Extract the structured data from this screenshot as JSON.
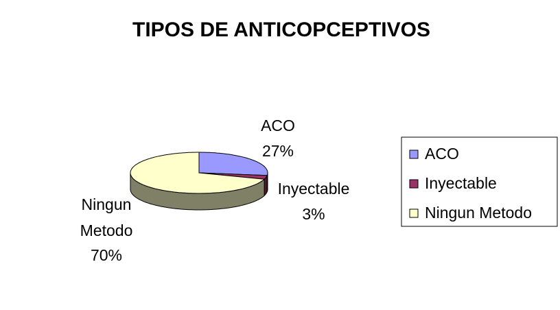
{
  "chart_data": {
    "type": "pie",
    "title": "TIPOS DE ANTICOPCEPTIVOS",
    "categories": [
      "ACO",
      "Inyectable",
      "Ningun Metodo"
    ],
    "values": [
      27,
      3,
      70
    ],
    "value_labels": [
      "27%",
      "3%",
      "70%"
    ],
    "colors": [
      "#9999ff",
      "#993366",
      "#ffffcc"
    ],
    "legend": "right"
  }
}
